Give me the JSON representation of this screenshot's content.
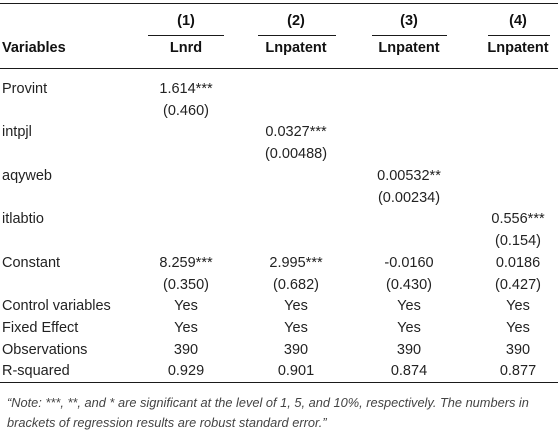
{
  "table": {
    "col_numbers": [
      "(1)",
      "(2)",
      "(3)",
      "(4)"
    ],
    "variables_header": "Variables",
    "dep_vars": [
      "Lnrd",
      "Lnpatent",
      "Lnpatent",
      "Lnpatent"
    ],
    "rows": [
      {
        "label": "Provint",
        "cells": [
          "1.614***",
          "",
          "",
          ""
        ],
        "se": [
          "(0.460)",
          "",
          "",
          ""
        ]
      },
      {
        "label": "intpjl",
        "cells": [
          "",
          "0.0327***",
          "",
          ""
        ],
        "se": [
          "",
          "(0.00488)",
          "",
          ""
        ]
      },
      {
        "label": "aqyweb",
        "cells": [
          "",
          "",
          "0.00532**",
          ""
        ],
        "se": [
          "",
          "",
          "(0.00234)",
          ""
        ]
      },
      {
        "label": "itlabtio",
        "cells": [
          "",
          "",
          "",
          "0.556***"
        ],
        "se": [
          "",
          "",
          "",
          "(0.154)"
        ]
      },
      {
        "label": "Constant",
        "cells": [
          "8.259***",
          "2.995***",
          "-0.0160",
          "0.0186"
        ],
        "se": [
          "(0.350)",
          "(0.682)",
          "(0.430)",
          "(0.427)"
        ]
      }
    ],
    "stats": [
      {
        "label": "Control variables",
        "cells": [
          "Yes",
          "Yes",
          "Yes",
          "Yes"
        ]
      },
      {
        "label": "Fixed Effect",
        "cells": [
          "Yes",
          "Yes",
          "Yes",
          "Yes"
        ]
      },
      {
        "label": "Observations",
        "cells": [
          "390",
          "390",
          "390",
          "390"
        ]
      },
      {
        "label": "R-squared",
        "cells": [
          "0.929",
          "0.901",
          "0.874",
          "0.877"
        ]
      }
    ],
    "note": "“Note: ***, **, and * are significant at the level of 1, 5, and 10%, respectively. The numbers in brackets of regression results are robust standard error.”"
  }
}
